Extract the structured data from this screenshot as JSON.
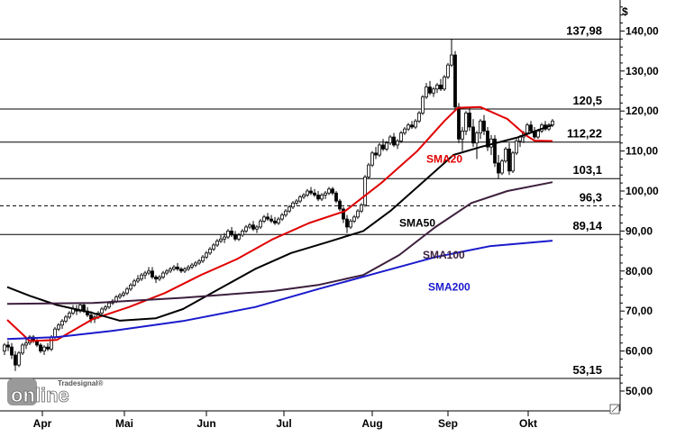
{
  "chart_data": {
    "type": "line",
    "currency_label": "$",
    "ylim": [
      45,
      145
    ],
    "ytick_values": [
      50,
      60,
      70,
      80,
      90,
      100,
      110,
      120,
      130,
      140
    ],
    "ytick_labels": [
      "50,00",
      "60,00",
      "70,00",
      "80,00",
      "90,00",
      "100,00",
      "110,00",
      "120,00",
      "130,00",
      "140,00"
    ],
    "xticks": [
      {
        "label": "Apr",
        "day": 47
      },
      {
        "label": "Mai",
        "day": 138
      },
      {
        "label": "Jun",
        "day": 229
      },
      {
        "label": "Jul",
        "day": 315
      },
      {
        "label": "Aug",
        "day": 413
      },
      {
        "label": "Sep",
        "day": 497
      },
      {
        "label": "Okt",
        "day": 586
      }
    ],
    "levels": [
      {
        "value": 137.98,
        "label": "137,98",
        "style": "solid"
      },
      {
        "value": 120.5,
        "label": "120,5",
        "style": "solid"
      },
      {
        "value": 112.22,
        "label": "112,22",
        "style": "solid"
      },
      {
        "value": 103.1,
        "label": "103,1",
        "style": "solid"
      },
      {
        "value": 96.3,
        "label": "96,3",
        "style": "dashed"
      },
      {
        "value": 89.14,
        "label": "89,14",
        "style": "solid"
      },
      {
        "value": 53.15,
        "label": "53,15",
        "style": "solid"
      }
    ],
    "series": [
      {
        "name": "SMA20",
        "color": "#e00000",
        "points": [
          [
            5,
            67.8
          ],
          [
            30,
            62.5
          ],
          [
            60,
            62.8
          ],
          [
            100,
            68
          ],
          [
            140,
            71
          ],
          [
            180,
            74.5
          ],
          [
            220,
            79
          ],
          [
            260,
            83
          ],
          [
            300,
            88
          ],
          [
            340,
            92
          ],
          [
            380,
            95
          ],
          [
            420,
            102
          ],
          [
            460,
            110
          ],
          [
            490,
            117.5
          ],
          [
            505,
            120.8
          ],
          [
            530,
            121
          ],
          [
            560,
            118
          ],
          [
            580,
            114
          ],
          [
            590,
            112.6
          ],
          [
            610,
            112.5
          ]
        ]
      },
      {
        "name": "SMA50",
        "color": "#000000",
        "points": [
          [
            5,
            76
          ],
          [
            30,
            73.8
          ],
          [
            60,
            71.5
          ],
          [
            100,
            69.5
          ],
          [
            130,
            67.6
          ],
          [
            170,
            68.2
          ],
          [
            200,
            70.5
          ],
          [
            240,
            75.5
          ],
          [
            280,
            80.5
          ],
          [
            320,
            84.5
          ],
          [
            360,
            87.2
          ],
          [
            400,
            90
          ],
          [
            430,
            95
          ],
          [
            470,
            103
          ],
          [
            500,
            109
          ],
          [
            530,
            111
          ],
          [
            570,
            113.3
          ],
          [
            610,
            116.5
          ]
        ]
      },
      {
        "name": "SMA100",
        "color": "#3d1f3d",
        "points": [
          [
            5,
            71.8
          ],
          [
            100,
            72
          ],
          [
            200,
            73.3
          ],
          [
            300,
            75
          ],
          [
            350,
            76.5
          ],
          [
            400,
            79
          ],
          [
            440,
            84
          ],
          [
            480,
            91
          ],
          [
            520,
            97
          ],
          [
            560,
            100
          ],
          [
            610,
            102.2
          ]
        ]
      },
      {
        "name": "SMA200",
        "color": "#1a1acc",
        "points": [
          [
            5,
            63
          ],
          [
            60,
            63.5
          ],
          [
            120,
            65
          ],
          [
            200,
            67.5
          ],
          [
            280,
            71
          ],
          [
            350,
            75.5
          ],
          [
            420,
            79.8
          ],
          [
            480,
            83.5
          ],
          [
            540,
            86.2
          ],
          [
            610,
            87.6
          ]
        ]
      }
    ],
    "series_labels": [
      {
        "name": "SMA20",
        "value": 108
      },
      {
        "name": "SMA50",
        "value": 92
      },
      {
        "name": "SMA100",
        "value": 84
      },
      {
        "name": "SMA200",
        "value": 76
      }
    ],
    "candles": [
      [
        2,
        60,
        62,
        59,
        61.5
      ],
      [
        6,
        61.5,
        62.5,
        60,
        61
      ],
      [
        10,
        61,
        62,
        58,
        59
      ],
      [
        14,
        59,
        60,
        55,
        56.5
      ],
      [
        18,
        56.5,
        60,
        56,
        59.5
      ],
      [
        22,
        59.5,
        62,
        59,
        61.5
      ],
      [
        26,
        61.5,
        63,
        60.5,
        62
      ],
      [
        30,
        62,
        64,
        61.5,
        63.5
      ],
      [
        34,
        63.5,
        64,
        62,
        62.5
      ],
      [
        38,
        62.5,
        63,
        61,
        61.5
      ],
      [
        42,
        61.5,
        62,
        59.5,
        60
      ],
      [
        46,
        60,
        61.5,
        59,
        61
      ],
      [
        50,
        61,
        62,
        60,
        60.5
      ],
      [
        54,
        60.5,
        64,
        60,
        63.5
      ],
      [
        58,
        63.5,
        66,
        63,
        65.5
      ],
      [
        62,
        65.5,
        67,
        65,
        66.5
      ],
      [
        66,
        66.5,
        68,
        65.5,
        67.5
      ],
      [
        70,
        67.5,
        69,
        67,
        68.5
      ],
      [
        74,
        68.5,
        70,
        68,
        69.5
      ],
      [
        78,
        69.5,
        71.5,
        69,
        70.5
      ],
      [
        82,
        70.5,
        71.5,
        69,
        70
      ],
      [
        86,
        70,
        72,
        69.5,
        71.5
      ],
      [
        90,
        71.5,
        72,
        69.5,
        70
      ],
      [
        94,
        70,
        71,
        68.5,
        69
      ],
      [
        98,
        69,
        70,
        67,
        68
      ],
      [
        102,
        68,
        69,
        67,
        68.5
      ],
      [
        106,
        68.5,
        70,
        68,
        69.5
      ],
      [
        110,
        69.5,
        71,
        69,
        70.5
      ],
      [
        114,
        70.5,
        71.5,
        70,
        71
      ],
      [
        118,
        71,
        72.5,
        70.5,
        72
      ],
      [
        122,
        72,
        73,
        71.5,
        72.5
      ],
      [
        126,
        72.5,
        74,
        72,
        73.5
      ],
      [
        130,
        73.5,
        74.5,
        73,
        74
      ],
      [
        134,
        74,
        75,
        73.5,
        74.5
      ],
      [
        138,
        74.5,
        76,
        74,
        75.5
      ],
      [
        142,
        75.5,
        77,
        75,
        76.5
      ],
      [
        146,
        76.5,
        78,
        76,
        77.5
      ],
      [
        150,
        77.5,
        79,
        77,
        78
      ],
      [
        154,
        78,
        79.5,
        77.5,
        79
      ],
      [
        158,
        79,
        80,
        78,
        79.5
      ],
      [
        162,
        79.5,
        81,
        79,
        80
      ],
      [
        166,
        80,
        81,
        78,
        78.5
      ],
      [
        170,
        78.5,
        79,
        77,
        78
      ],
      [
        174,
        78,
        79,
        77.5,
        78.5
      ],
      [
        178,
        78.5,
        80,
        78,
        79.5
      ],
      [
        182,
        79.5,
        80.5,
        79,
        80
      ],
      [
        186,
        80,
        81,
        79.5,
        80.5
      ],
      [
        190,
        80.5,
        81.5,
        80,
        81
      ],
      [
        194,
        81,
        82,
        80,
        80.5
      ],
      [
        198,
        80.5,
        81,
        79.5,
        80
      ],
      [
        202,
        80,
        81,
        79.5,
        80.5
      ],
      [
        206,
        80.5,
        81.5,
        80,
        81
      ],
      [
        210,
        81,
        82,
        80.5,
        81.5
      ],
      [
        214,
        81.5,
        82.5,
        81,
        82
      ],
      [
        218,
        82,
        83,
        81.5,
        82.5
      ],
      [
        222,
        82.5,
        84,
        82,
        83.5
      ],
      [
        226,
        83.5,
        85,
        83,
        84.5
      ],
      [
        230,
        84.5,
        86,
        84,
        85.5
      ],
      [
        234,
        85.5,
        87,
        85,
        86.5
      ],
      [
        238,
        86.5,
        88,
        86,
        87.5
      ],
      [
        242,
        87.5,
        89,
        87,
        88
      ],
      [
        246,
        88,
        89.5,
        87,
        88.5
      ],
      [
        250,
        88.5,
        90.5,
        88,
        90
      ],
      [
        254,
        90,
        91,
        88.5,
        89
      ],
      [
        258,
        89,
        90,
        87.5,
        88
      ],
      [
        262,
        88,
        89.5,
        87.5,
        89
      ],
      [
        266,
        89,
        90.5,
        88.5,
        90
      ],
      [
        270,
        90,
        91.5,
        89.5,
        91
      ],
      [
        274,
        91,
        92,
        90.5,
        91.5
      ],
      [
        278,
        91.5,
        92.5,
        90,
        90.5
      ],
      [
        282,
        90.5,
        91.5,
        89.5,
        91
      ],
      [
        286,
        91,
        93,
        90.5,
        92.5
      ],
      [
        290,
        92.5,
        94,
        92,
        93.5
      ],
      [
        294,
        93.5,
        94.5,
        92.5,
        93
      ],
      [
        298,
        93,
        94,
        92,
        92.5
      ],
      [
        302,
        92.5,
        93.5,
        91.5,
        92
      ],
      [
        306,
        92,
        93.5,
        91.5,
        93
      ],
      [
        310,
        93,
        94.5,
        92.5,
        94
      ],
      [
        314,
        94,
        95.5,
        93.5,
        95
      ],
      [
        318,
        95,
        96.5,
        94.5,
        96
      ],
      [
        322,
        96,
        97.5,
        95.5,
        97
      ],
      [
        326,
        97,
        98,
        96.5,
        97.5
      ],
      [
        330,
        97.5,
        99,
        97,
        98.5
      ],
      [
        334,
        98.5,
        99.5,
        98,
        99
      ],
      [
        338,
        99,
        100.5,
        98.5,
        100
      ],
      [
        342,
        100,
        101,
        99,
        99.5
      ],
      [
        346,
        99.5,
        100.5,
        98.5,
        99
      ],
      [
        350,
        99,
        100,
        97.5,
        98
      ],
      [
        354,
        98,
        99.5,
        97.5,
        99
      ],
      [
        358,
        99,
        100,
        98,
        99.5
      ],
      [
        362,
        99.5,
        101,
        99,
        100.5
      ],
      [
        366,
        100.5,
        101,
        99,
        99.5
      ],
      [
        370,
        99.5,
        100,
        97,
        97.5
      ],
      [
        374,
        97.5,
        98,
        95,
        95.5
      ],
      [
        378,
        95.5,
        96,
        92,
        93
      ],
      [
        382,
        93,
        94,
        89.5,
        91
      ],
      [
        386,
        91,
        93,
        90.5,
        92.5
      ],
      [
        390,
        92.5,
        94,
        92,
        93.5
      ],
      [
        394,
        93.5,
        95.5,
        93,
        95
      ],
      [
        398,
        95,
        97,
        94.5,
        96.5
      ],
      [
        402,
        96.5,
        104,
        96,
        103.5
      ],
      [
        406,
        103.5,
        107,
        103,
        106.5
      ],
      [
        410,
        106.5,
        110,
        106,
        109.5
      ],
      [
        414,
        109.5,
        111,
        108,
        109
      ],
      [
        418,
        109,
        112,
        108.5,
        111.5
      ],
      [
        422,
        111.5,
        113,
        110,
        110.5
      ],
      [
        426,
        110.5,
        112.5,
        110,
        112
      ],
      [
        430,
        112,
        114,
        111.5,
        113.5
      ],
      [
        434,
        113.5,
        114.5,
        111,
        111.5
      ],
      [
        438,
        111.5,
        113,
        110.5,
        112.5
      ],
      [
        442,
        112.5,
        115,
        112,
        114.5
      ],
      [
        446,
        114.5,
        116,
        114,
        115.5
      ],
      [
        450,
        115.5,
        117,
        115,
        116.5
      ],
      [
        454,
        116.5,
        117.5,
        115.5,
        116
      ],
      [
        458,
        116,
        118,
        115.5,
        117.5
      ],
      [
        462,
        117.5,
        120,
        117,
        119.5
      ],
      [
        466,
        119.5,
        124,
        119,
        123.5
      ],
      [
        470,
        123.5,
        127,
        123,
        126
      ],
      [
        474,
        126,
        127.5,
        124,
        124.5
      ],
      [
        478,
        124.5,
        126,
        123.5,
        125.5
      ],
      [
        482,
        125.5,
        127,
        124.5,
        126.5
      ],
      [
        486,
        126.5,
        128,
        125,
        125.5
      ],
      [
        490,
        125.5,
        129,
        125,
        128.5
      ],
      [
        494,
        128.5,
        132,
        128,
        131.5
      ],
      [
        498,
        131.5,
        138,
        131,
        134
      ],
      [
        502,
        134,
        135,
        120,
        121
      ],
      [
        506,
        121,
        122,
        112,
        113
      ],
      [
        510,
        113,
        116,
        110,
        115
      ],
      [
        514,
        115,
        120,
        114,
        119.5
      ],
      [
        518,
        119.5,
        121,
        115,
        116
      ],
      [
        522,
        116,
        118,
        111,
        112
      ],
      [
        526,
        112,
        115,
        108,
        114.5
      ],
      [
        530,
        114.5,
        118,
        113,
        117.5
      ],
      [
        534,
        117.5,
        119,
        114,
        115
      ],
      [
        538,
        115,
        116,
        110,
        111
      ],
      [
        542,
        111,
        114,
        109,
        113
      ],
      [
        546,
        113,
        114,
        106,
        107
      ],
      [
        550,
        107,
        109,
        103,
        104.5
      ],
      [
        554,
        104.5,
        108,
        104,
        107.5
      ],
      [
        558,
        107.5,
        111,
        107,
        110.5
      ],
      [
        562,
        110.5,
        112,
        104,
        105
      ],
      [
        566,
        105,
        110,
        104.5,
        109.5
      ],
      [
        570,
        109.5,
        113,
        109,
        112.5
      ],
      [
        574,
        112.5,
        114,
        111,
        113.5
      ],
      [
        578,
        113.5,
        115,
        112,
        114.5
      ],
      [
        582,
        114.5,
        117,
        114,
        116.5
      ],
      [
        586,
        116.5,
        117.5,
        114.5,
        115
      ],
      [
        590,
        115,
        116,
        113,
        113.5
      ],
      [
        594,
        113.5,
        115.5,
        113,
        115
      ],
      [
        598,
        115,
        117,
        114.5,
        116.5
      ],
      [
        602,
        116.5,
        117.5,
        115,
        115.5
      ],
      [
        606,
        115.5,
        117,
        115,
        116.5
      ],
      [
        610,
        116.5,
        118,
        116,
        117.5
      ]
    ]
  },
  "brand": {
    "logo_text": "online",
    "logo_sup": "Tradesignal®"
  }
}
